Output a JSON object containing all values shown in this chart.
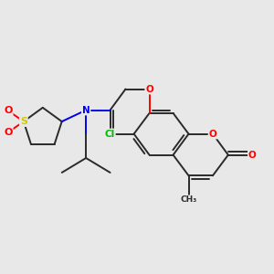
{
  "bg_color": "#e8e8e8",
  "bond_color": "#2a2a2a",
  "atom_colors": {
    "O": "#ff0000",
    "N": "#0000ee",
    "S": "#cccc00",
    "Cl": "#00bb00",
    "C": "#2a2a2a"
  },
  "figsize": [
    3.0,
    3.0
  ],
  "dpi": 100
}
